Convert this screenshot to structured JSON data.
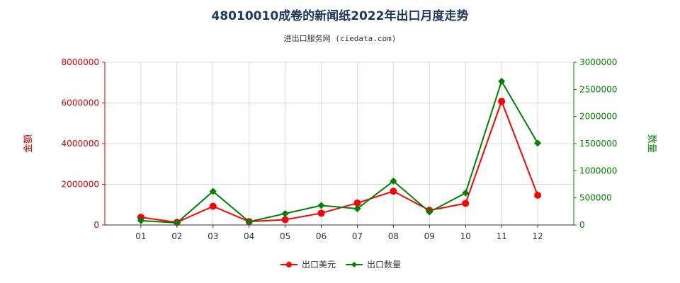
{
  "title": "48010010成卷的新闻纸2022年出口月度走势",
  "subtitle": "进出口服务网 (ciedata.com)",
  "colors": {
    "usd": "#ff0000",
    "qty": "#008000",
    "left_axis": "#d40000",
    "right_axis": "#008000"
  },
  "chart_data": {
    "type": "line",
    "x": [
      "01",
      "02",
      "03",
      "04",
      "05",
      "06",
      "07",
      "08",
      "09",
      "10",
      "11",
      "12"
    ],
    "y_left_label": "金额",
    "y_right_label": "数量",
    "y_left_ticks": [
      "0",
      "2000000",
      "4000000",
      "6000000",
      "8000000"
    ],
    "y_right_ticks": [
      "0",
      "500000",
      "1000000",
      "1500000",
      "2000000",
      "2500000",
      "3000000"
    ],
    "y_left_lim": [
      0,
      8000000
    ],
    "y_right_lim": [
      0,
      3000000
    ],
    "grid": true,
    "legend_position": "bottom",
    "series": [
      {
        "name": "出口美元",
        "axis": "left",
        "color": "#ff0000",
        "marker": "circle",
        "values": [
          380000,
          130000,
          920000,
          170000,
          260000,
          580000,
          1080000,
          1660000,
          720000,
          1060000,
          6080000,
          1460000
        ]
      },
      {
        "name": "出口数量",
        "axis": "right",
        "color": "#008000",
        "marker": "diamond",
        "values": [
          80000,
          40000,
          620000,
          60000,
          210000,
          360000,
          300000,
          810000,
          240000,
          590000,
          2650000,
          1510000
        ]
      }
    ]
  }
}
